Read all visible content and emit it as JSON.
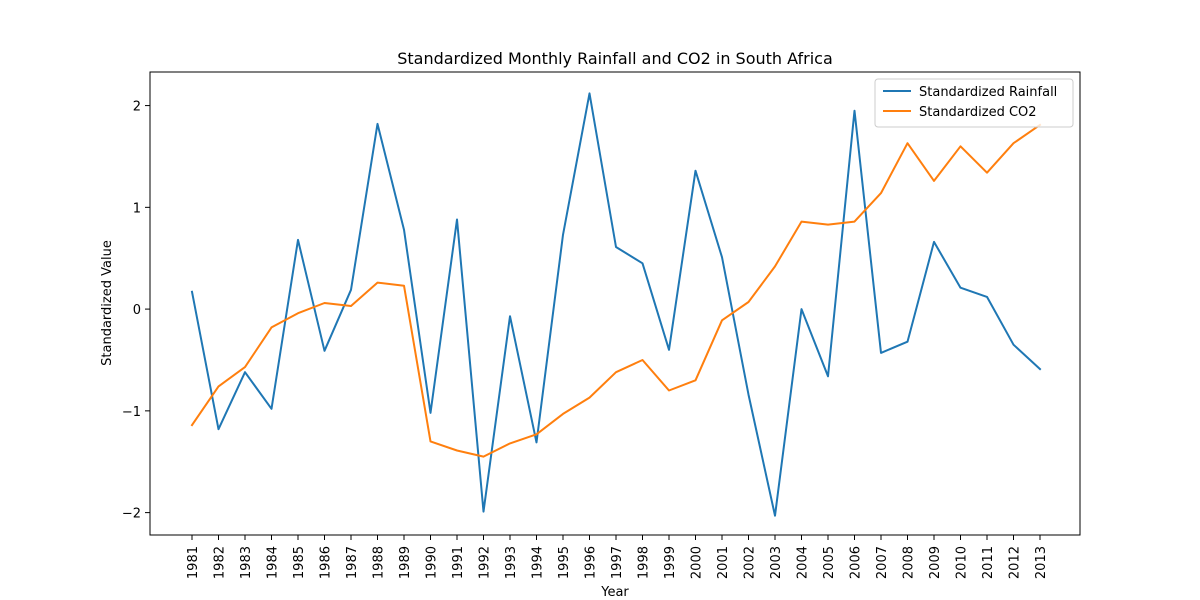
{
  "chart_data": {
    "type": "line",
    "title": "Standardized Monthly Rainfall and CO2 in South Africa",
    "xlabel": "Year",
    "ylabel": "Standardized Value",
    "x": [
      "1981",
      "1982",
      "1983",
      "1984",
      "1985",
      "1986",
      "1987",
      "1988",
      "1989",
      "1990",
      "1991",
      "1992",
      "1993",
      "1994",
      "1995",
      "1996",
      "1997",
      "1998",
      "1999",
      "2000",
      "2001",
      "2002",
      "2003",
      "2004",
      "2005",
      "2006",
      "2007",
      "2008",
      "2009",
      "2010",
      "2011",
      "2012",
      "2013"
    ],
    "yticks": [
      -2,
      -1,
      0,
      1,
      2
    ],
    "ylim": [
      -2.22,
      2.33
    ],
    "grid": false,
    "legend_position": "top-right",
    "series": [
      {
        "name": "Standardized Rainfall",
        "color": "#1f77b4",
        "values": [
          0.17,
          -1.18,
          -0.62,
          -0.98,
          0.68,
          -0.41,
          0.19,
          1.82,
          0.78,
          -1.02,
          0.88,
          -1.99,
          -0.07,
          -1.31,
          0.73,
          2.12,
          0.61,
          0.45,
          -0.4,
          1.36,
          0.51,
          -0.84,
          -2.03,
          0.0,
          -0.66,
          1.95,
          -0.43,
          -0.32,
          0.66,
          0.21,
          0.12,
          -0.35,
          -0.59
        ]
      },
      {
        "name": "Standardized CO2",
        "color": "#ff7f0e",
        "values": [
          -1.14,
          -0.76,
          -0.57,
          -0.18,
          -0.04,
          0.06,
          0.03,
          0.26,
          0.23,
          -1.3,
          -1.39,
          -1.45,
          -1.32,
          -1.23,
          -1.03,
          -0.87,
          -0.62,
          -0.5,
          -0.8,
          -0.7,
          -0.11,
          0.07,
          0.42,
          0.86,
          0.83,
          0.86,
          1.14,
          1.63,
          1.26,
          1.6,
          1.34,
          1.63,
          1.81
        ]
      }
    ]
  }
}
